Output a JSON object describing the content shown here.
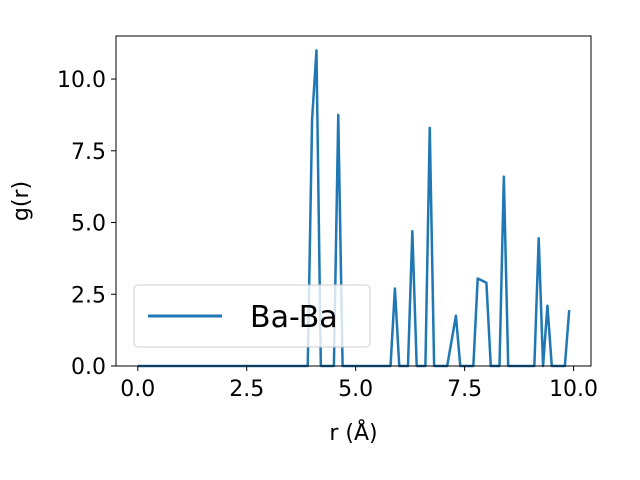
{
  "chart_data": {
    "type": "line",
    "xlabel": "r (Å)",
    "ylabel": "g(r)",
    "xlim": [
      -0.5,
      10.4
    ],
    "ylim": [
      0,
      11.5
    ],
    "xticks": [
      0.0,
      2.5,
      5.0,
      7.5,
      10.0
    ],
    "xtick_labels": [
      "0.0",
      "2.5",
      "5.0",
      "7.5",
      "10.0"
    ],
    "yticks": [
      0.0,
      2.5,
      5.0,
      7.5,
      10.0
    ],
    "ytick_labels": [
      "0.0",
      "2.5",
      "5.0",
      "7.5",
      "10.0"
    ],
    "grid": false,
    "legend_position": "lower-left",
    "series": [
      {
        "name": "Ba-Ba",
        "color": "#1f77b4",
        "x": [
          0.0,
          0.5,
          1.0,
          1.5,
          2.0,
          2.5,
          3.0,
          3.5,
          3.9,
          4.0,
          4.1,
          4.2,
          4.5,
          4.6,
          4.7,
          5.0,
          5.5,
          5.8,
          5.9,
          6.0,
          6.2,
          6.3,
          6.4,
          6.6,
          6.7,
          6.8,
          7.1,
          7.3,
          7.4,
          7.7,
          7.8,
          8.0,
          8.1,
          8.3,
          8.4,
          8.5,
          9.1,
          9.2,
          9.3,
          9.4,
          9.5,
          9.8,
          9.9
        ],
        "y": [
          0,
          0,
          0,
          0,
          0,
          0,
          0,
          0,
          0,
          8.6,
          11.0,
          0,
          0,
          8.75,
          0,
          0,
          0,
          0,
          2.7,
          0,
          0,
          4.7,
          0,
          0,
          8.3,
          0,
          0,
          1.75,
          0,
          0,
          3.05,
          2.9,
          0,
          0,
          6.6,
          0,
          0,
          4.45,
          0,
          2.1,
          0,
          0,
          1.95
        ]
      }
    ]
  }
}
